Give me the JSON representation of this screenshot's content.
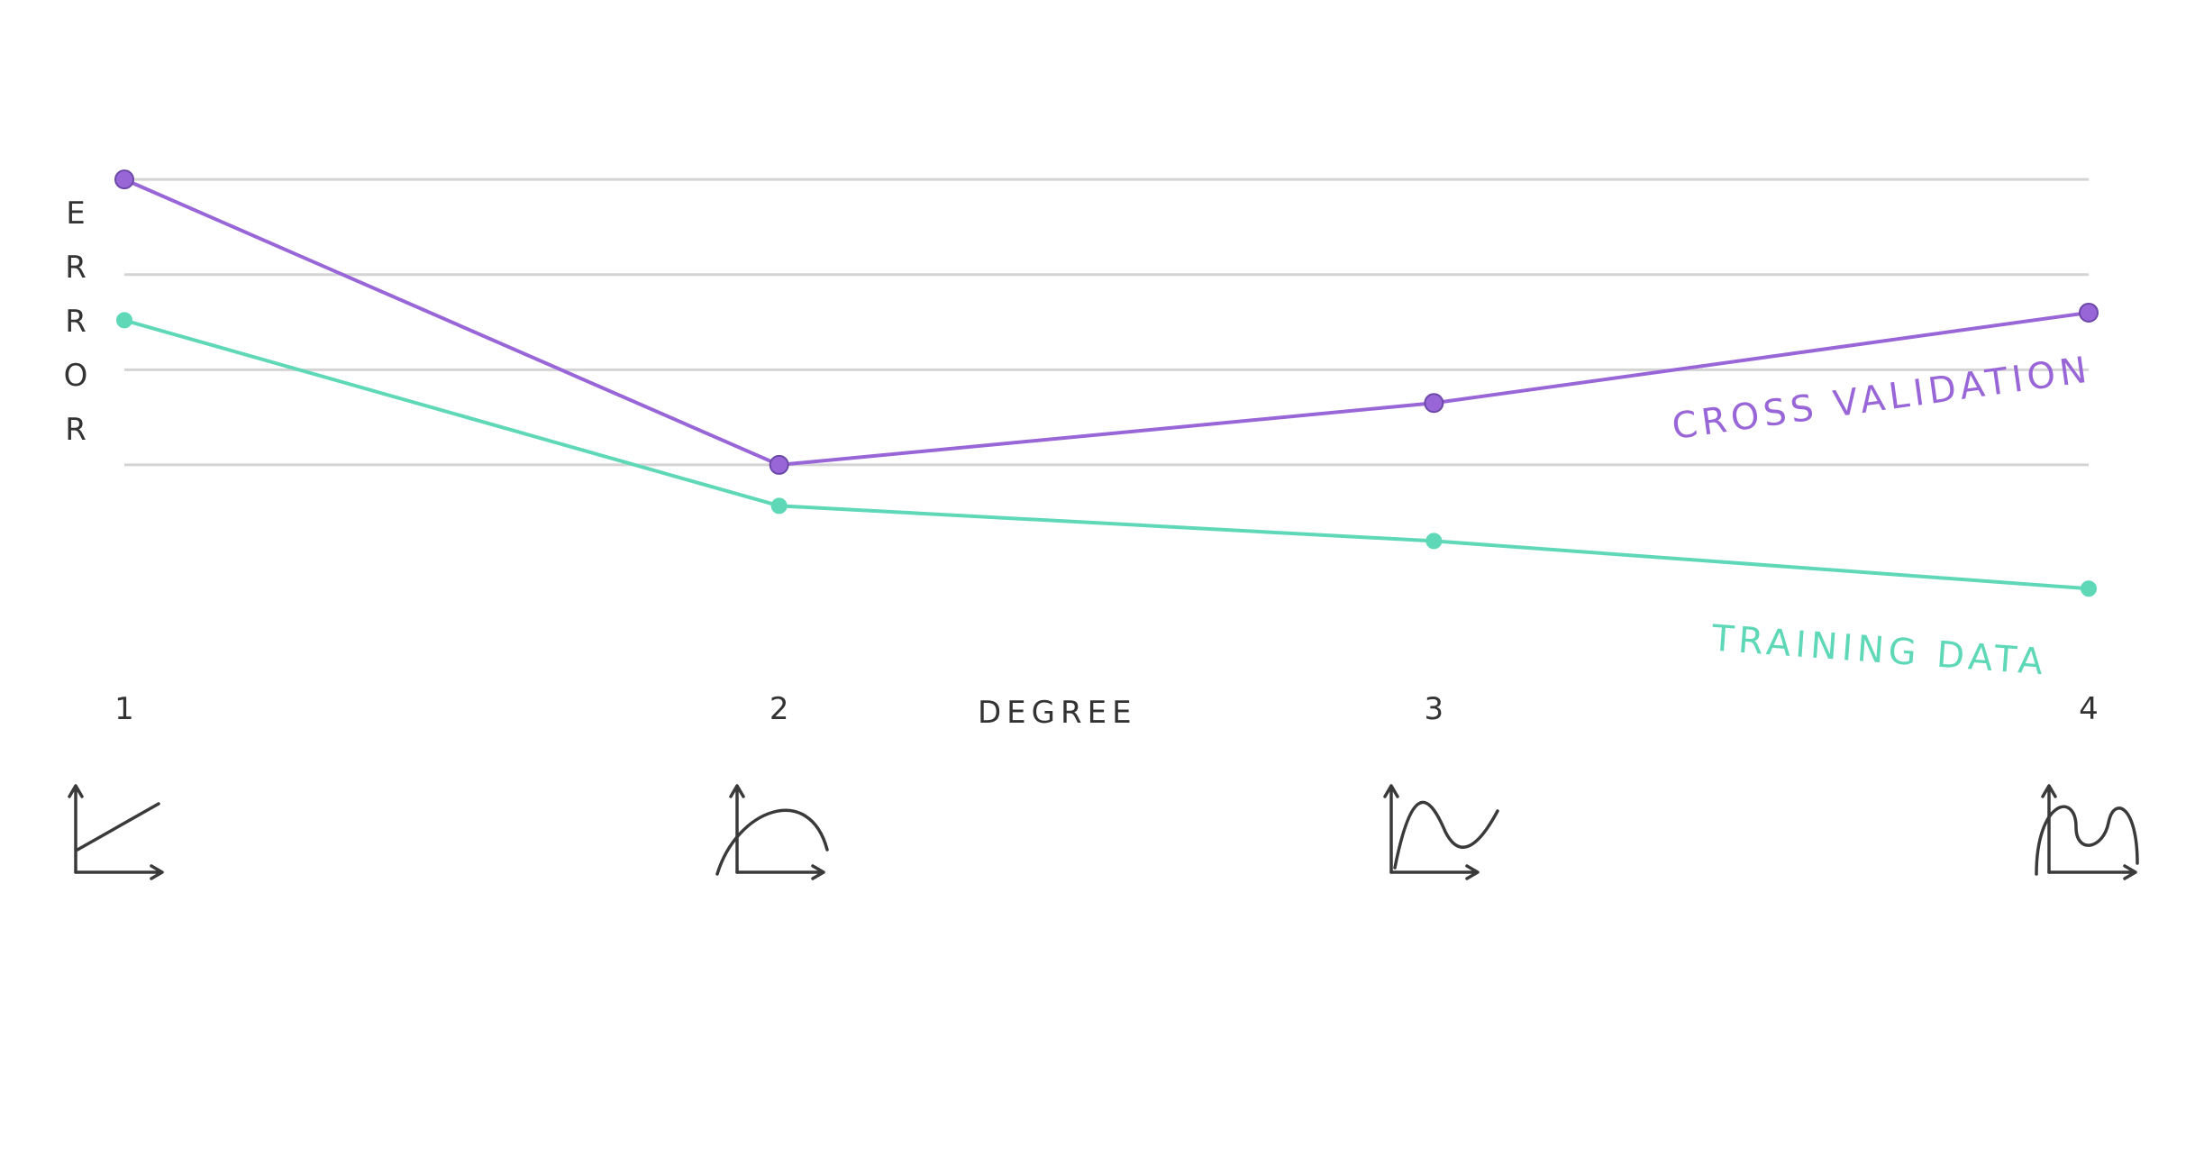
{
  "chart_data": {
    "type": "line",
    "x": [
      1,
      2,
      3,
      4
    ],
    "xlabel": "DEGREE",
    "ylabel": "ERROR",
    "series": [
      {
        "name": "CROSS VALIDATION",
        "color": "#9966d8",
        "values": [
          4.0,
          1.0,
          1.65,
          2.6
        ]
      },
      {
        "name": "TRAINING DATA",
        "color": "#5fd8b8",
        "values": [
          2.52,
          0.57,
          0.2,
          -0.3
        ]
      }
    ],
    "ylim": [
      -0.8,
      4.2
    ],
    "grid": true,
    "icons": [
      "linear-curve-icon",
      "quadratic-curve-icon",
      "cubic-curve-icon",
      "quartic-curve-icon"
    ]
  }
}
